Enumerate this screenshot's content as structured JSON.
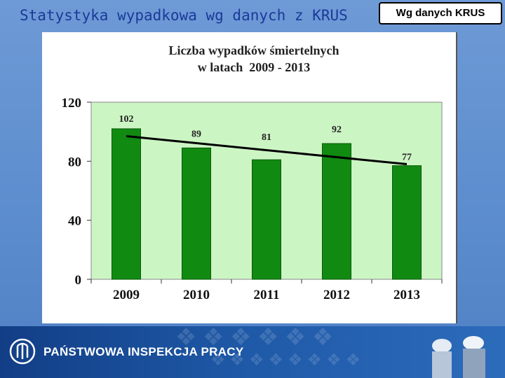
{
  "slide": {
    "title": "Statystyka wypadkowa wg danych z KRUS",
    "badge": "Wg danych KRUS"
  },
  "footer": {
    "organization": "PAŃSTWOWA INSPEKCJA PRACY",
    "logo_icon": "pip-eagle-logo-icon"
  },
  "colors": {
    "bar": "#118a11",
    "plot_background": "#ccf5c4",
    "trend_line": "#000000",
    "title_text": "#1a3a9a"
  },
  "chart_data": {
    "type": "bar",
    "title_line1": "Liczba wypadków śmiertelnych",
    "title_line2": "w latach  2009 - 2013",
    "categories": [
      "2009",
      "2010",
      "2011",
      "2012",
      "2013"
    ],
    "values": [
      102,
      89,
      81,
      92,
      77
    ],
    "data_labels": [
      "102",
      "89",
      "81",
      "92",
      "77"
    ],
    "ylim": [
      0,
      120
    ],
    "yticks": [
      "0",
      "40",
      "80",
      "120"
    ],
    "trendline": {
      "type": "linear",
      "start": 97,
      "end": 78
    },
    "grid": false,
    "legend": "none"
  }
}
